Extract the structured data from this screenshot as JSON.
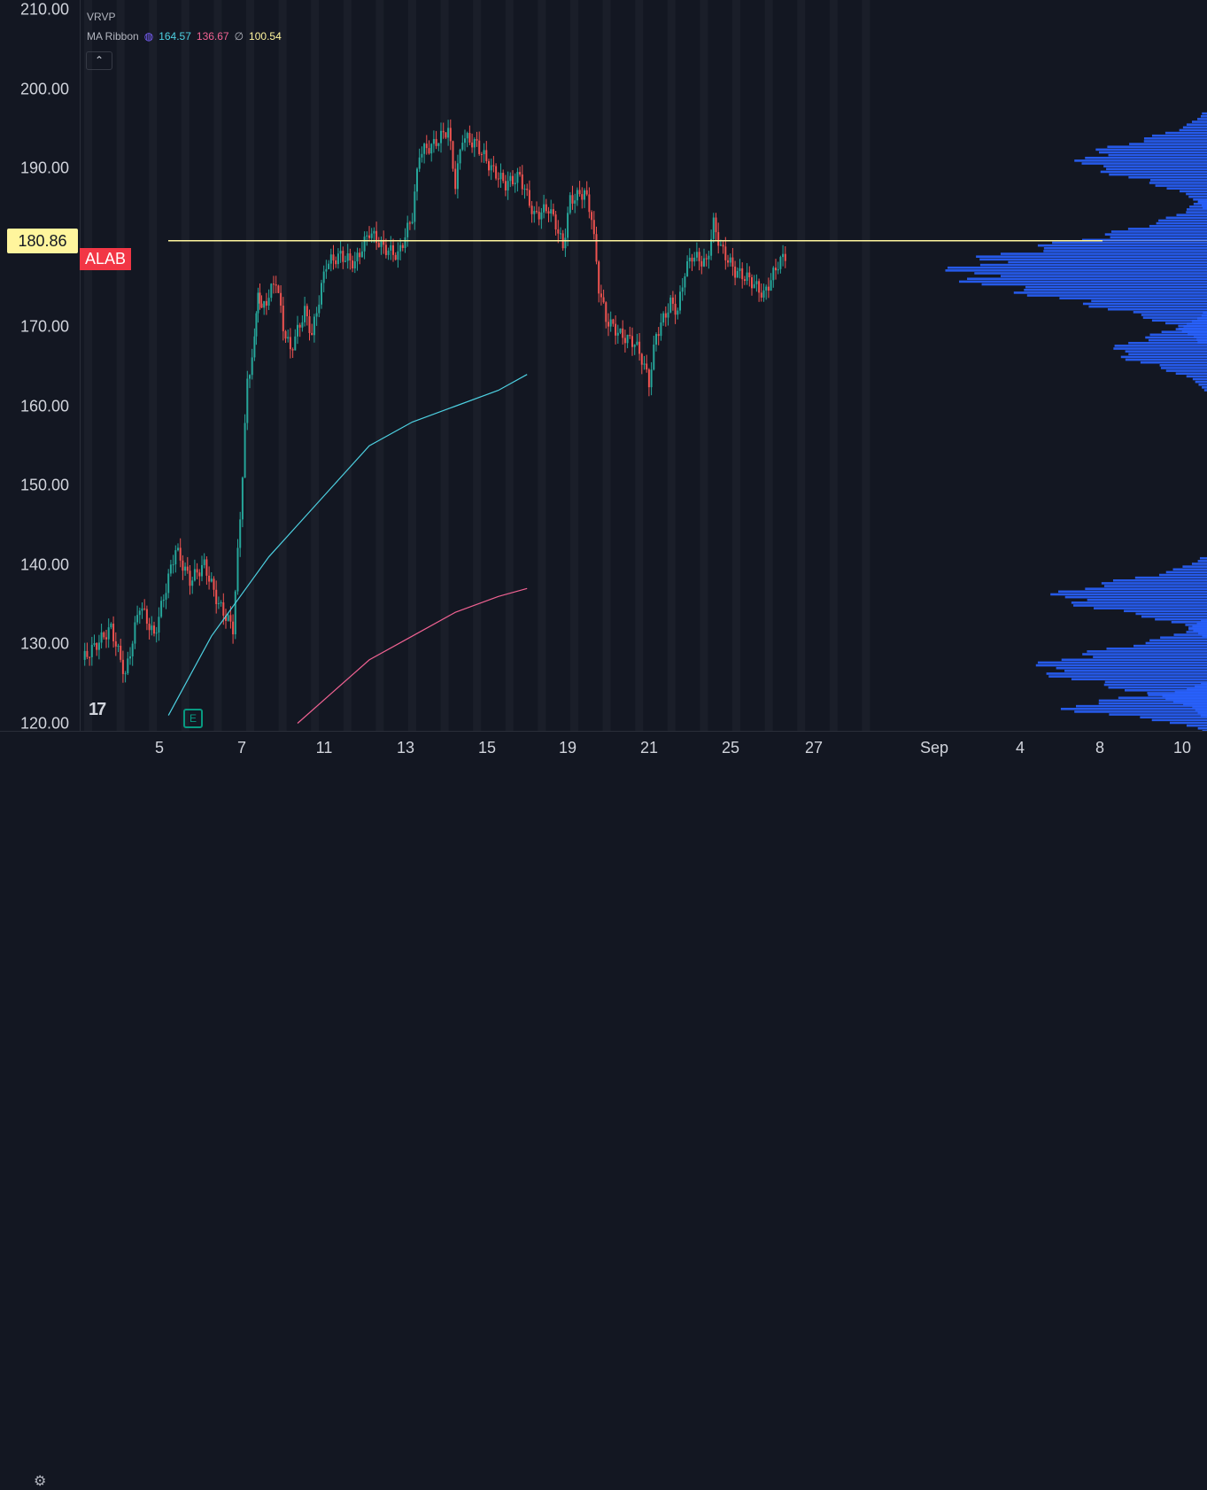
{
  "legend": {
    "vrvp_label": "VRVP",
    "ma_label": "MA Ribbon",
    "ma_values": [
      "164.57",
      "136.67",
      "100.54"
    ],
    "sep": "∅"
  },
  "price_tag": "180.86",
  "ticker_tag": "ALAB",
  "colors": {
    "up": "#26a69a",
    "down": "#ef5350",
    "ma1": "#4dd0e1",
    "ma2": "#f06292",
    "level": "#fff59d",
    "vp": "#2962ff"
  },
  "chart_data": {
    "type": "candlestick",
    "y_ticks": [
      "210.00",
      "200.00",
      "190.00",
      "180.00",
      "170.00",
      "160.00",
      "150.00",
      "140.00",
      "130.00",
      "120.00"
    ],
    "x_ticks": [
      "5",
      "7",
      "11",
      "13",
      "15",
      "19",
      "21",
      "25",
      "27",
      "Sep",
      "4",
      "8",
      "10"
    ],
    "ylim": [
      119.3,
      211.0
    ],
    "horizontal_level": 180.86,
    "close_path": [
      [
        0,
        128
      ],
      [
        4,
        132
      ],
      [
        6,
        126
      ],
      [
        8,
        135
      ],
      [
        10,
        131
      ],
      [
        13,
        142
      ],
      [
        15,
        138
      ],
      [
        17,
        140
      ],
      [
        19,
        135
      ],
      [
        21,
        132
      ],
      [
        22,
        146
      ],
      [
        23,
        163
      ],
      [
        24,
        168
      ],
      [
        24.5,
        175
      ],
      [
        25,
        172
      ],
      [
        27,
        176
      ],
      [
        28,
        170
      ],
      [
        29,
        167
      ],
      [
        31,
        172
      ],
      [
        32,
        169
      ],
      [
        34,
        178
      ],
      [
        36,
        179
      ],
      [
        38,
        178
      ],
      [
        40,
        182
      ],
      [
        42,
        180
      ],
      [
        44,
        179
      ],
      [
        46,
        184
      ],
      [
        47,
        192
      ],
      [
        49,
        193
      ],
      [
        51,
        195
      ],
      [
        52,
        188
      ],
      [
        53,
        194
      ],
      [
        55,
        193
      ],
      [
        57,
        190
      ],
      [
        59,
        188
      ],
      [
        61,
        189
      ],
      [
        63,
        184
      ],
      [
        65,
        185
      ],
      [
        66,
        183
      ],
      [
        67,
        180
      ],
      [
        68,
        186
      ],
      [
        70,
        187
      ],
      [
        71,
        184
      ],
      [
        72,
        175
      ],
      [
        73,
        171
      ],
      [
        75,
        169
      ],
      [
        77,
        168
      ],
      [
        78,
        166
      ],
      [
        79,
        163
      ],
      [
        80,
        169
      ],
      [
        82,
        173
      ],
      [
        83,
        172
      ],
      [
        84,
        177
      ],
      [
        85,
        179
      ],
      [
        87,
        178
      ],
      [
        88,
        183
      ],
      [
        89,
        180
      ],
      [
        91,
        177
      ],
      [
        93,
        176
      ],
      [
        95,
        174
      ],
      [
        96,
        176
      ],
      [
        97,
        178
      ],
      [
        98,
        179
      ]
    ],
    "ma1": [
      [
        12,
        121
      ],
      [
        15,
        126
      ],
      [
        18,
        131
      ],
      [
        22,
        136
      ],
      [
        26,
        141
      ],
      [
        30,
        145
      ],
      [
        35,
        150
      ],
      [
        40,
        155
      ],
      [
        46,
        158
      ],
      [
        52,
        160
      ],
      [
        58,
        162
      ],
      [
        62,
        164
      ]
    ],
    "ma2": [
      [
        30,
        120
      ],
      [
        35,
        124
      ],
      [
        40,
        128
      ],
      [
        46,
        131
      ],
      [
        52,
        134
      ],
      [
        58,
        136
      ],
      [
        62,
        137
      ]
    ],
    "volume_profile_note": "",
    "grid": true
  }
}
